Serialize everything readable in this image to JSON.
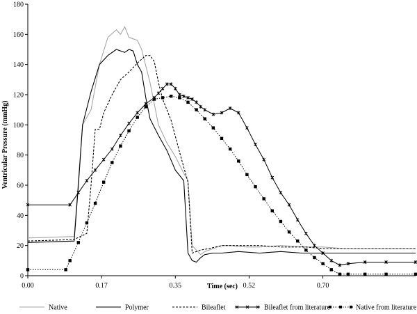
{
  "chart_data": {
    "type": "line",
    "title": "",
    "xlabel": "Time (sec)",
    "ylabel": "Ventricular Pressure (mmHg)",
    "xlim": [
      0,
      0.92
    ],
    "ylim": [
      0,
      180
    ],
    "xticks": [
      0,
      0.175,
      0.35,
      0.525,
      0.7
    ],
    "xtick_labels": [
      "0.00",
      "0.17",
      "0.35",
      "0.52",
      "0.70"
    ],
    "yticks": [
      0,
      20,
      40,
      60,
      80,
      100,
      120,
      140,
      160,
      180
    ],
    "grid": false,
    "legend_position": "bottom",
    "series": [
      {
        "name": "Native",
        "color": "#a6a6a6",
        "dash": "solid",
        "marker": "none",
        "x": [
          0,
          0.11,
          0.13,
          0.15,
          0.17,
          0.19,
          0.21,
          0.22,
          0.23,
          0.24,
          0.25,
          0.26,
          0.27,
          0.29,
          0.31,
          0.33,
          0.35,
          0.37,
          0.38,
          0.39,
          0.4,
          0.41,
          0.42,
          0.44,
          0.46,
          0.48,
          0.52,
          0.55,
          0.6,
          0.66,
          0.7,
          0.75,
          0.85,
          0.92
        ],
        "y": [
          25,
          26,
          100,
          110,
          140,
          158,
          163,
          160,
          165,
          158,
          157,
          156,
          150,
          128,
          100,
          88,
          79,
          68,
          63,
          20,
          17,
          14,
          16,
          18,
          20,
          20,
          19,
          19,
          20,
          19,
          19,
          18,
          18,
          18
        ]
      },
      {
        "name": "Polymer",
        "color": "#000000",
        "dash": "solid",
        "marker": "none",
        "x": [
          0,
          0.11,
          0.12,
          0.13,
          0.15,
          0.17,
          0.19,
          0.21,
          0.23,
          0.24,
          0.25,
          0.26,
          0.27,
          0.28,
          0.29,
          0.31,
          0.33,
          0.35,
          0.37,
          0.38,
          0.39,
          0.4,
          0.41,
          0.42,
          0.44,
          0.46,
          0.5,
          0.55,
          0.6,
          0.65,
          0.7,
          0.75,
          0.85,
          0.92
        ],
        "y": [
          22,
          23,
          60,
          100,
          122,
          140,
          146,
          150,
          148,
          150,
          149,
          140,
          135,
          118,
          104,
          93,
          83,
          70,
          63,
          15,
          10,
          9,
          12,
          14,
          15,
          15,
          16,
          15,
          16,
          15,
          15,
          15,
          15,
          15
        ]
      },
      {
        "name": "Bileaflet",
        "color": "#000000",
        "dash": "dashed",
        "marker": "none",
        "x": [
          0,
          0.11,
          0.14,
          0.15,
          0.16,
          0.17,
          0.18,
          0.2,
          0.22,
          0.24,
          0.26,
          0.28,
          0.29,
          0.3,
          0.31,
          0.32,
          0.34,
          0.36,
          0.38,
          0.39,
          0.4,
          0.41,
          0.43,
          0.46,
          0.5,
          0.55,
          0.6,
          0.66,
          0.7,
          0.75,
          0.85,
          0.92
        ],
        "y": [
          23,
          24,
          28,
          60,
          97,
          97,
          108,
          120,
          130,
          135,
          141,
          146,
          146,
          142,
          128,
          117,
          103,
          82,
          62,
          15,
          16,
          17,
          18,
          20,
          20,
          20,
          19,
          19,
          18,
          18,
          18,
          18
        ]
      },
      {
        "name": "Bileaflet from literature",
        "color": "#000000",
        "dash": "solid",
        "marker": "star",
        "x": [
          0,
          0.1,
          0.12,
          0.14,
          0.16,
          0.18,
          0.2,
          0.22,
          0.24,
          0.26,
          0.28,
          0.3,
          0.31,
          0.32,
          0.33,
          0.34,
          0.35,
          0.36,
          0.37,
          0.38,
          0.39,
          0.4,
          0.41,
          0.42,
          0.44,
          0.46,
          0.48,
          0.5,
          0.52,
          0.54,
          0.56,
          0.58,
          0.6,
          0.62,
          0.64,
          0.66,
          0.68,
          0.7,
          0.72,
          0.74,
          0.76,
          0.8,
          0.85,
          0.92
        ],
        "y": [
          47,
          47,
          55,
          63,
          70,
          77,
          84,
          93,
          101,
          108,
          114,
          118,
          121,
          124,
          127,
          127,
          124,
          120,
          119,
          118,
          117,
          115,
          112,
          110,
          107,
          108,
          111,
          108,
          98,
          87,
          77,
          65,
          55,
          47,
          37,
          28,
          20,
          15,
          10,
          7,
          8,
          9,
          9,
          9
        ]
      },
      {
        "name": "Native from literature",
        "color": "#000000",
        "dash": "dotted",
        "marker": "square",
        "x": [
          0,
          0.09,
          0.1,
          0.12,
          0.14,
          0.16,
          0.18,
          0.2,
          0.22,
          0.24,
          0.26,
          0.28,
          0.3,
          0.32,
          0.34,
          0.36,
          0.38,
          0.4,
          0.42,
          0.44,
          0.46,
          0.48,
          0.5,
          0.52,
          0.54,
          0.56,
          0.58,
          0.6,
          0.62,
          0.64,
          0.66,
          0.68,
          0.7,
          0.72,
          0.74,
          0.76,
          0.8,
          0.85,
          0.92
        ],
        "y": [
          4,
          4,
          10,
          22,
          35,
          48,
          62,
          75,
          86,
          96,
          105,
          112,
          117,
          118,
          119,
          118,
          115,
          110,
          104,
          98,
          91,
          84,
          76,
          67,
          59,
          51,
          43,
          36,
          29,
          23,
          17,
          12,
          8,
          4,
          1,
          1,
          1,
          1,
          1
        ]
      }
    ]
  }
}
